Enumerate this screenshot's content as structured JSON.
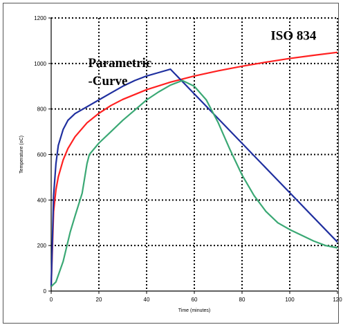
{
  "chart_data": {
    "type": "line",
    "xlabel": "Time (minutes)",
    "ylabel": "Temperature (oC)",
    "xlim": [
      0,
      120
    ],
    "ylim": [
      0,
      1200
    ],
    "x_ticks": [
      "0",
      "20",
      "40",
      "60",
      "80",
      "100",
      "120"
    ],
    "y_ticks": [
      "0",
      "200",
      "400",
      "600",
      "800",
      "1000",
      "1200"
    ],
    "grid": true,
    "annotations": [
      {
        "text": "ISO 834",
        "x": 92,
        "y": 1105
      },
      {
        "text": "Parametric",
        "x": 15.5,
        "y": 985
      },
      {
        "text": "-Curve",
        "x": 15.5,
        "y": 905
      }
    ],
    "series": [
      {
        "color": "#ff2020",
        "x": [
          0,
          1,
          2,
          3,
          5,
          7,
          10,
          15,
          20,
          25,
          30,
          40,
          50,
          60,
          70,
          80,
          90,
          100,
          110,
          120
        ],
        "y": [
          20,
          349,
          445,
          502,
          576,
          626,
          678,
          739,
          781,
          815,
          842,
          885,
          918,
          945,
          968,
          988,
          1006,
          1022,
          1036,
          1049
        ]
      },
      {
        "color": "#1f2f9f",
        "x": [
          0,
          1,
          2,
          3,
          5,
          7,
          10,
          15,
          20,
          25,
          30,
          35,
          40,
          45,
          50,
          120
        ],
        "y": [
          20,
          420,
          560,
          640,
          710,
          750,
          780,
          810,
          840,
          870,
          900,
          925,
          945,
          960,
          975,
          215
        ]
      },
      {
        "color": "#3aa874",
        "x": [
          0,
          2,
          5,
          8,
          10,
          13,
          15,
          16,
          20,
          25,
          30,
          35,
          40,
          45,
          50,
          55,
          60,
          65,
          70,
          75,
          80,
          85,
          90,
          95,
          100,
          105,
          110,
          115,
          120
        ],
        "y": [
          20,
          40,
          130,
          260,
          330,
          430,
          560,
          600,
          650,
          700,
          750,
          795,
          840,
          875,
          905,
          925,
          900,
          840,
          740,
          620,
          510,
          420,
          350,
          300,
          270,
          245,
          220,
          200,
          190
        ]
      }
    ]
  }
}
